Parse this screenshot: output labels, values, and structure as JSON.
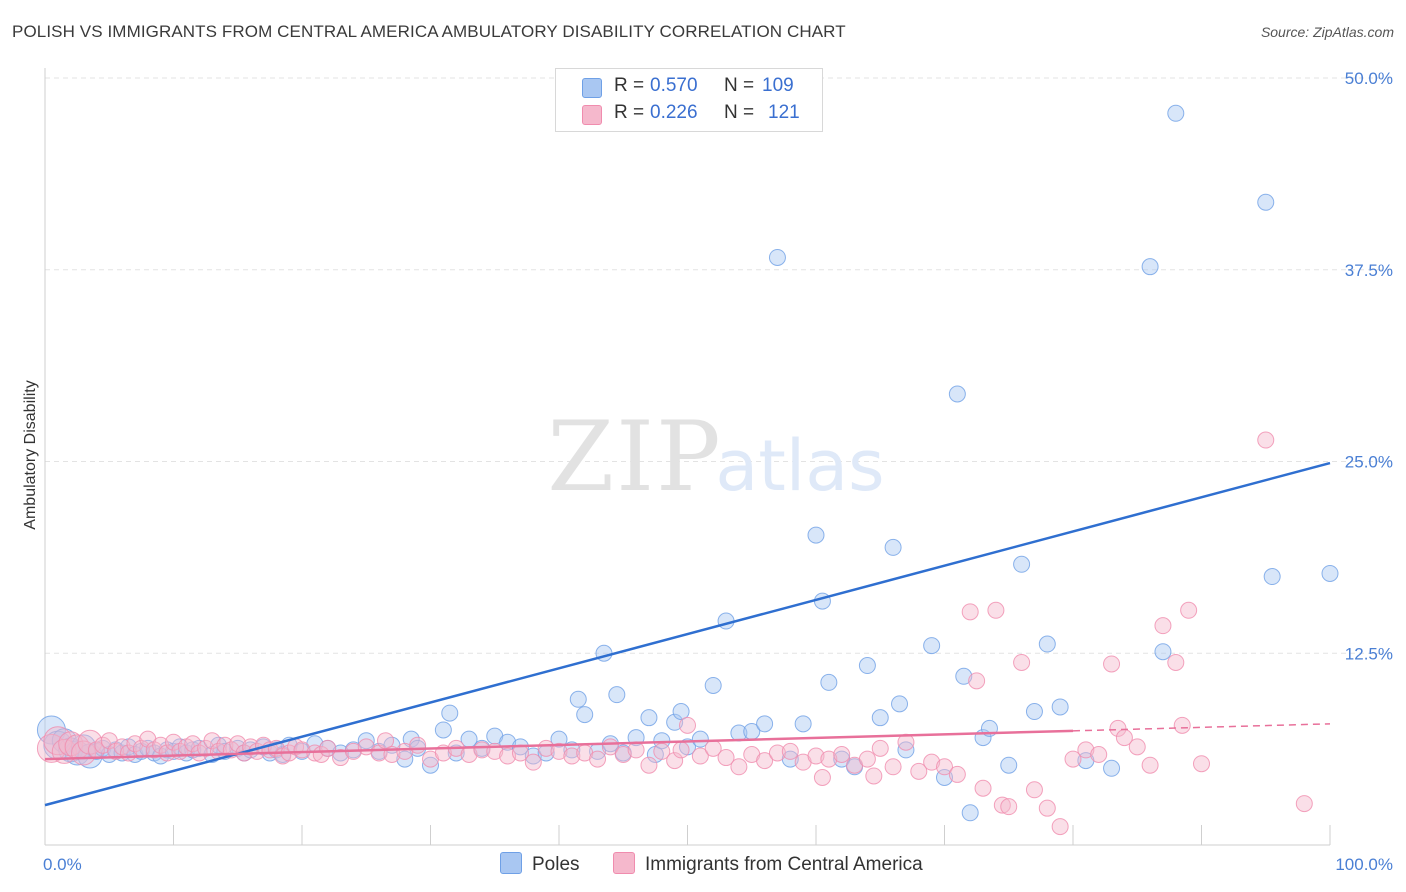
{
  "title": "POLISH VS IMMIGRANTS FROM CENTRAL AMERICA AMBULATORY DISABILITY CORRELATION CHART",
  "source": "Source: ZipAtlas.com",
  "watermark": {
    "zip": "ZIP",
    "atlas": "atlas"
  },
  "legend": {
    "rows": [
      {
        "r_label": "R =",
        "r_value": "0.570",
        "n_label": "N =",
        "n_value": "109",
        "color": "#a9c7f2"
      },
      {
        "r_label": "R =",
        "r_value": "0.226",
        "n_label": "N =",
        "n_value": "121",
        "color": "#f5b8cc"
      }
    ]
  },
  "chart_data": {
    "type": "scatter",
    "title": "POLISH VS IMMIGRANTS FROM CENTRAL AMERICA AMBULATORY DISABILITY CORRELATION CHART",
    "xlabel": "",
    "ylabel": "Ambulatory Disability",
    "xlim": [
      0,
      100
    ],
    "ylim": [
      0,
      50
    ],
    "x_tick_labels": [
      "0.0%",
      "100.0%"
    ],
    "y_ticks": [
      12.5,
      25.0,
      37.5,
      50.0
    ],
    "y_tick_labels": [
      "12.5%",
      "25.0%",
      "37.5%",
      "50.0%"
    ],
    "grid": true,
    "legend_position": "top-center",
    "series": [
      {
        "name": "Poles",
        "color": "#6fa0e6",
        "fill": "#a9c7f2",
        "trend": {
          "x": [
            0,
            100
          ],
          "y": [
            2.6,
            24.9
          ],
          "color": "#2f6fd0",
          "dashed_from": null
        },
        "points": [
          [
            0.5,
            7.5
          ],
          [
            1,
            6.5
          ],
          [
            1.5,
            6.8
          ],
          [
            2,
            6.2
          ],
          [
            2.5,
            6.0
          ],
          [
            3,
            6.4
          ],
          [
            3.5,
            5.8
          ],
          [
            4,
            6.1
          ],
          [
            4.5,
            6.3
          ],
          [
            5,
            5.9
          ],
          [
            5.5,
            6.2
          ],
          [
            6,
            6.0
          ],
          [
            6.5,
            6.4
          ],
          [
            7,
            5.9
          ],
          [
            7.5,
            6.1
          ],
          [
            8,
            6.3
          ],
          [
            8.5,
            6.0
          ],
          [
            9,
            5.8
          ],
          [
            9.5,
            6.2
          ],
          [
            10,
            6.1
          ],
          [
            10.5,
            6.4
          ],
          [
            11,
            6.0
          ],
          [
            11.5,
            6.2
          ],
          [
            12,
            6.3
          ],
          [
            13,
            5.9
          ],
          [
            13.5,
            6.5
          ],
          [
            14,
            6.1
          ],
          [
            15,
            6.3
          ],
          [
            15.5,
            6.0
          ],
          [
            16,
            6.2
          ],
          [
            17,
            6.4
          ],
          [
            17.5,
            6.0
          ],
          [
            18,
            6.2
          ],
          [
            18.5,
            5.9
          ],
          [
            19,
            6.5
          ],
          [
            20,
            6.1
          ],
          [
            21,
            6.6
          ],
          [
            22,
            6.3
          ],
          [
            23,
            6.0
          ],
          [
            24,
            6.2
          ],
          [
            25,
            6.8
          ],
          [
            26,
            6.1
          ],
          [
            27,
            6.5
          ],
          [
            28,
            5.6
          ],
          [
            28.5,
            6.9
          ],
          [
            29,
            6.3
          ],
          [
            30,
            5.2
          ],
          [
            31,
            7.5
          ],
          [
            31.5,
            8.6
          ],
          [
            32,
            6.0
          ],
          [
            33,
            6.9
          ],
          [
            34,
            6.3
          ],
          [
            35,
            7.1
          ],
          [
            36,
            6.7
          ],
          [
            37,
            6.4
          ],
          [
            38,
            5.8
          ],
          [
            39,
            6.0
          ],
          [
            40,
            6.9
          ],
          [
            41,
            6.2
          ],
          [
            41.5,
            9.5
          ],
          [
            42,
            8.5
          ],
          [
            43,
            6.1
          ],
          [
            43.5,
            12.5
          ],
          [
            44,
            6.6
          ],
          [
            44.5,
            9.8
          ],
          [
            45,
            6.0
          ],
          [
            46,
            7.0
          ],
          [
            47,
            8.3
          ],
          [
            47.5,
            5.9
          ],
          [
            48,
            6.8
          ],
          [
            49,
            8.0
          ],
          [
            49.5,
            8.7
          ],
          [
            50,
            6.4
          ],
          [
            51,
            6.9
          ],
          [
            52,
            10.4
          ],
          [
            53,
            14.6
          ],
          [
            54,
            7.3
          ],
          [
            55,
            7.4
          ],
          [
            56,
            7.9
          ],
          [
            57,
            38.3
          ],
          [
            58,
            5.6
          ],
          [
            59,
            7.9
          ],
          [
            60,
            20.2
          ],
          [
            60.5,
            15.9
          ],
          [
            61,
            10.6
          ],
          [
            62,
            5.6
          ],
          [
            63,
            5.1
          ],
          [
            64,
            11.7
          ],
          [
            65,
            8.3
          ],
          [
            66,
            19.4
          ],
          [
            66.5,
            9.2
          ],
          [
            67,
            6.2
          ],
          [
            69,
            13.0
          ],
          [
            70,
            4.4
          ],
          [
            71,
            29.4
          ],
          [
            71.5,
            11.0
          ],
          [
            72,
            2.1
          ],
          [
            73,
            7.0
          ],
          [
            73.5,
            7.6
          ],
          [
            75,
            5.2
          ],
          [
            76,
            18.3
          ],
          [
            77,
            8.7
          ],
          [
            78,
            13.1
          ],
          [
            79,
            9.0
          ],
          [
            81,
            5.5
          ],
          [
            83,
            5.0
          ],
          [
            86,
            37.7
          ],
          [
            87,
            12.6
          ],
          [
            95,
            41.9
          ],
          [
            95.5,
            17.5
          ],
          [
            100,
            17.7
          ],
          [
            88,
            47.7
          ]
        ]
      },
      {
        "name": "Immigrants from Central America",
        "color": "#f08cae",
        "fill": "#f5b8cc",
        "trend": {
          "x": [
            0,
            100
          ],
          "y": [
            5.6,
            7.9
          ],
          "color": "#e8709a",
          "dashed_from": 80
        },
        "points": [
          [
            0.5,
            6.3
          ],
          [
            1,
            6.8
          ],
          [
            1.5,
            6.1
          ],
          [
            2,
            6.6
          ],
          [
            2.5,
            6.4
          ],
          [
            3,
            6.0
          ],
          [
            3.5,
            6.7
          ],
          [
            4,
            6.2
          ],
          [
            4.5,
            6.5
          ],
          [
            5,
            6.8
          ],
          [
            5.5,
            6.1
          ],
          [
            6,
            6.4
          ],
          [
            6.5,
            6.0
          ],
          [
            7,
            6.6
          ],
          [
            7.5,
            6.3
          ],
          [
            8,
            6.9
          ],
          [
            8.5,
            6.2
          ],
          [
            9,
            6.5
          ],
          [
            9.5,
            6.0
          ],
          [
            10,
            6.7
          ],
          [
            10.5,
            6.1
          ],
          [
            11,
            6.4
          ],
          [
            11.5,
            6.6
          ],
          [
            12,
            6.0
          ],
          [
            12.5,
            6.3
          ],
          [
            13,
            6.8
          ],
          [
            13.5,
            6.1
          ],
          [
            14,
            6.5
          ],
          [
            14.5,
            6.2
          ],
          [
            15,
            6.6
          ],
          [
            15.5,
            6.0
          ],
          [
            16,
            6.4
          ],
          [
            16.5,
            6.1
          ],
          [
            17,
            6.5
          ],
          [
            17.5,
            6.2
          ],
          [
            18,
            6.3
          ],
          [
            18.5,
            5.8
          ],
          [
            19,
            6.0
          ],
          [
            19.5,
            6.4
          ],
          [
            20,
            6.2
          ],
          [
            21,
            6.0
          ],
          [
            21.5,
            5.9
          ],
          [
            22,
            6.3
          ],
          [
            23,
            5.7
          ],
          [
            24,
            6.1
          ],
          [
            25,
            6.4
          ],
          [
            26,
            6.0
          ],
          [
            26.5,
            6.8
          ],
          [
            27,
            5.9
          ],
          [
            28,
            6.1
          ],
          [
            29,
            6.5
          ],
          [
            30,
            5.6
          ],
          [
            31,
            6.0
          ],
          [
            32,
            6.3
          ],
          [
            33,
            5.9
          ],
          [
            34,
            6.2
          ],
          [
            35,
            6.1
          ],
          [
            36,
            5.8
          ],
          [
            37,
            6.0
          ],
          [
            38,
            5.4
          ],
          [
            39,
            6.3
          ],
          [
            40,
            6.1
          ],
          [
            41,
            5.8
          ],
          [
            42,
            6.0
          ],
          [
            43,
            5.6
          ],
          [
            44,
            6.4
          ],
          [
            45,
            5.9
          ],
          [
            46,
            6.2
          ],
          [
            47,
            5.2
          ],
          [
            48,
            6.1
          ],
          [
            49,
            5.5
          ],
          [
            49.5,
            6.2
          ],
          [
            50,
            7.8
          ],
          [
            51,
            5.8
          ],
          [
            52,
            6.3
          ],
          [
            53,
            5.7
          ],
          [
            54,
            5.1
          ],
          [
            55,
            5.9
          ],
          [
            56,
            5.5
          ],
          [
            57,
            6.0
          ],
          [
            58,
            6.1
          ],
          [
            59,
            5.4
          ],
          [
            60,
            5.8
          ],
          [
            60.5,
            4.4
          ],
          [
            61,
            5.6
          ],
          [
            62,
            5.9
          ],
          [
            63,
            5.2
          ],
          [
            64,
            5.6
          ],
          [
            64.5,
            4.5
          ],
          [
            65,
            6.3
          ],
          [
            66,
            5.1
          ],
          [
            67,
            6.7
          ],
          [
            68,
            4.8
          ],
          [
            69,
            5.4
          ],
          [
            70,
            5.1
          ],
          [
            71,
            4.6
          ],
          [
            72,
            15.2
          ],
          [
            72.5,
            10.7
          ],
          [
            73,
            3.7
          ],
          [
            74,
            15.3
          ],
          [
            74.5,
            2.6
          ],
          [
            75,
            2.5
          ],
          [
            76,
            11.9
          ],
          [
            77,
            3.6
          ],
          [
            78,
            2.4
          ],
          [
            79,
            1.2
          ],
          [
            80,
            5.6
          ],
          [
            81,
            6.2
          ],
          [
            82,
            5.9
          ],
          [
            83,
            11.8
          ],
          [
            83.5,
            7.6
          ],
          [
            84,
            7.0
          ],
          [
            85,
            6.4
          ],
          [
            86,
            5.2
          ],
          [
            87,
            14.3
          ],
          [
            88,
            11.9
          ],
          [
            88.5,
            7.8
          ],
          [
            89,
            15.3
          ],
          [
            90,
            5.3
          ],
          [
            95,
            26.4
          ],
          [
            98,
            2.7
          ]
        ]
      }
    ]
  },
  "bottom_legend": [
    {
      "label": "Poles",
      "color": "#a9c7f2"
    },
    {
      "label": "Immigrants from Central America",
      "color": "#f5b8cc"
    }
  ]
}
